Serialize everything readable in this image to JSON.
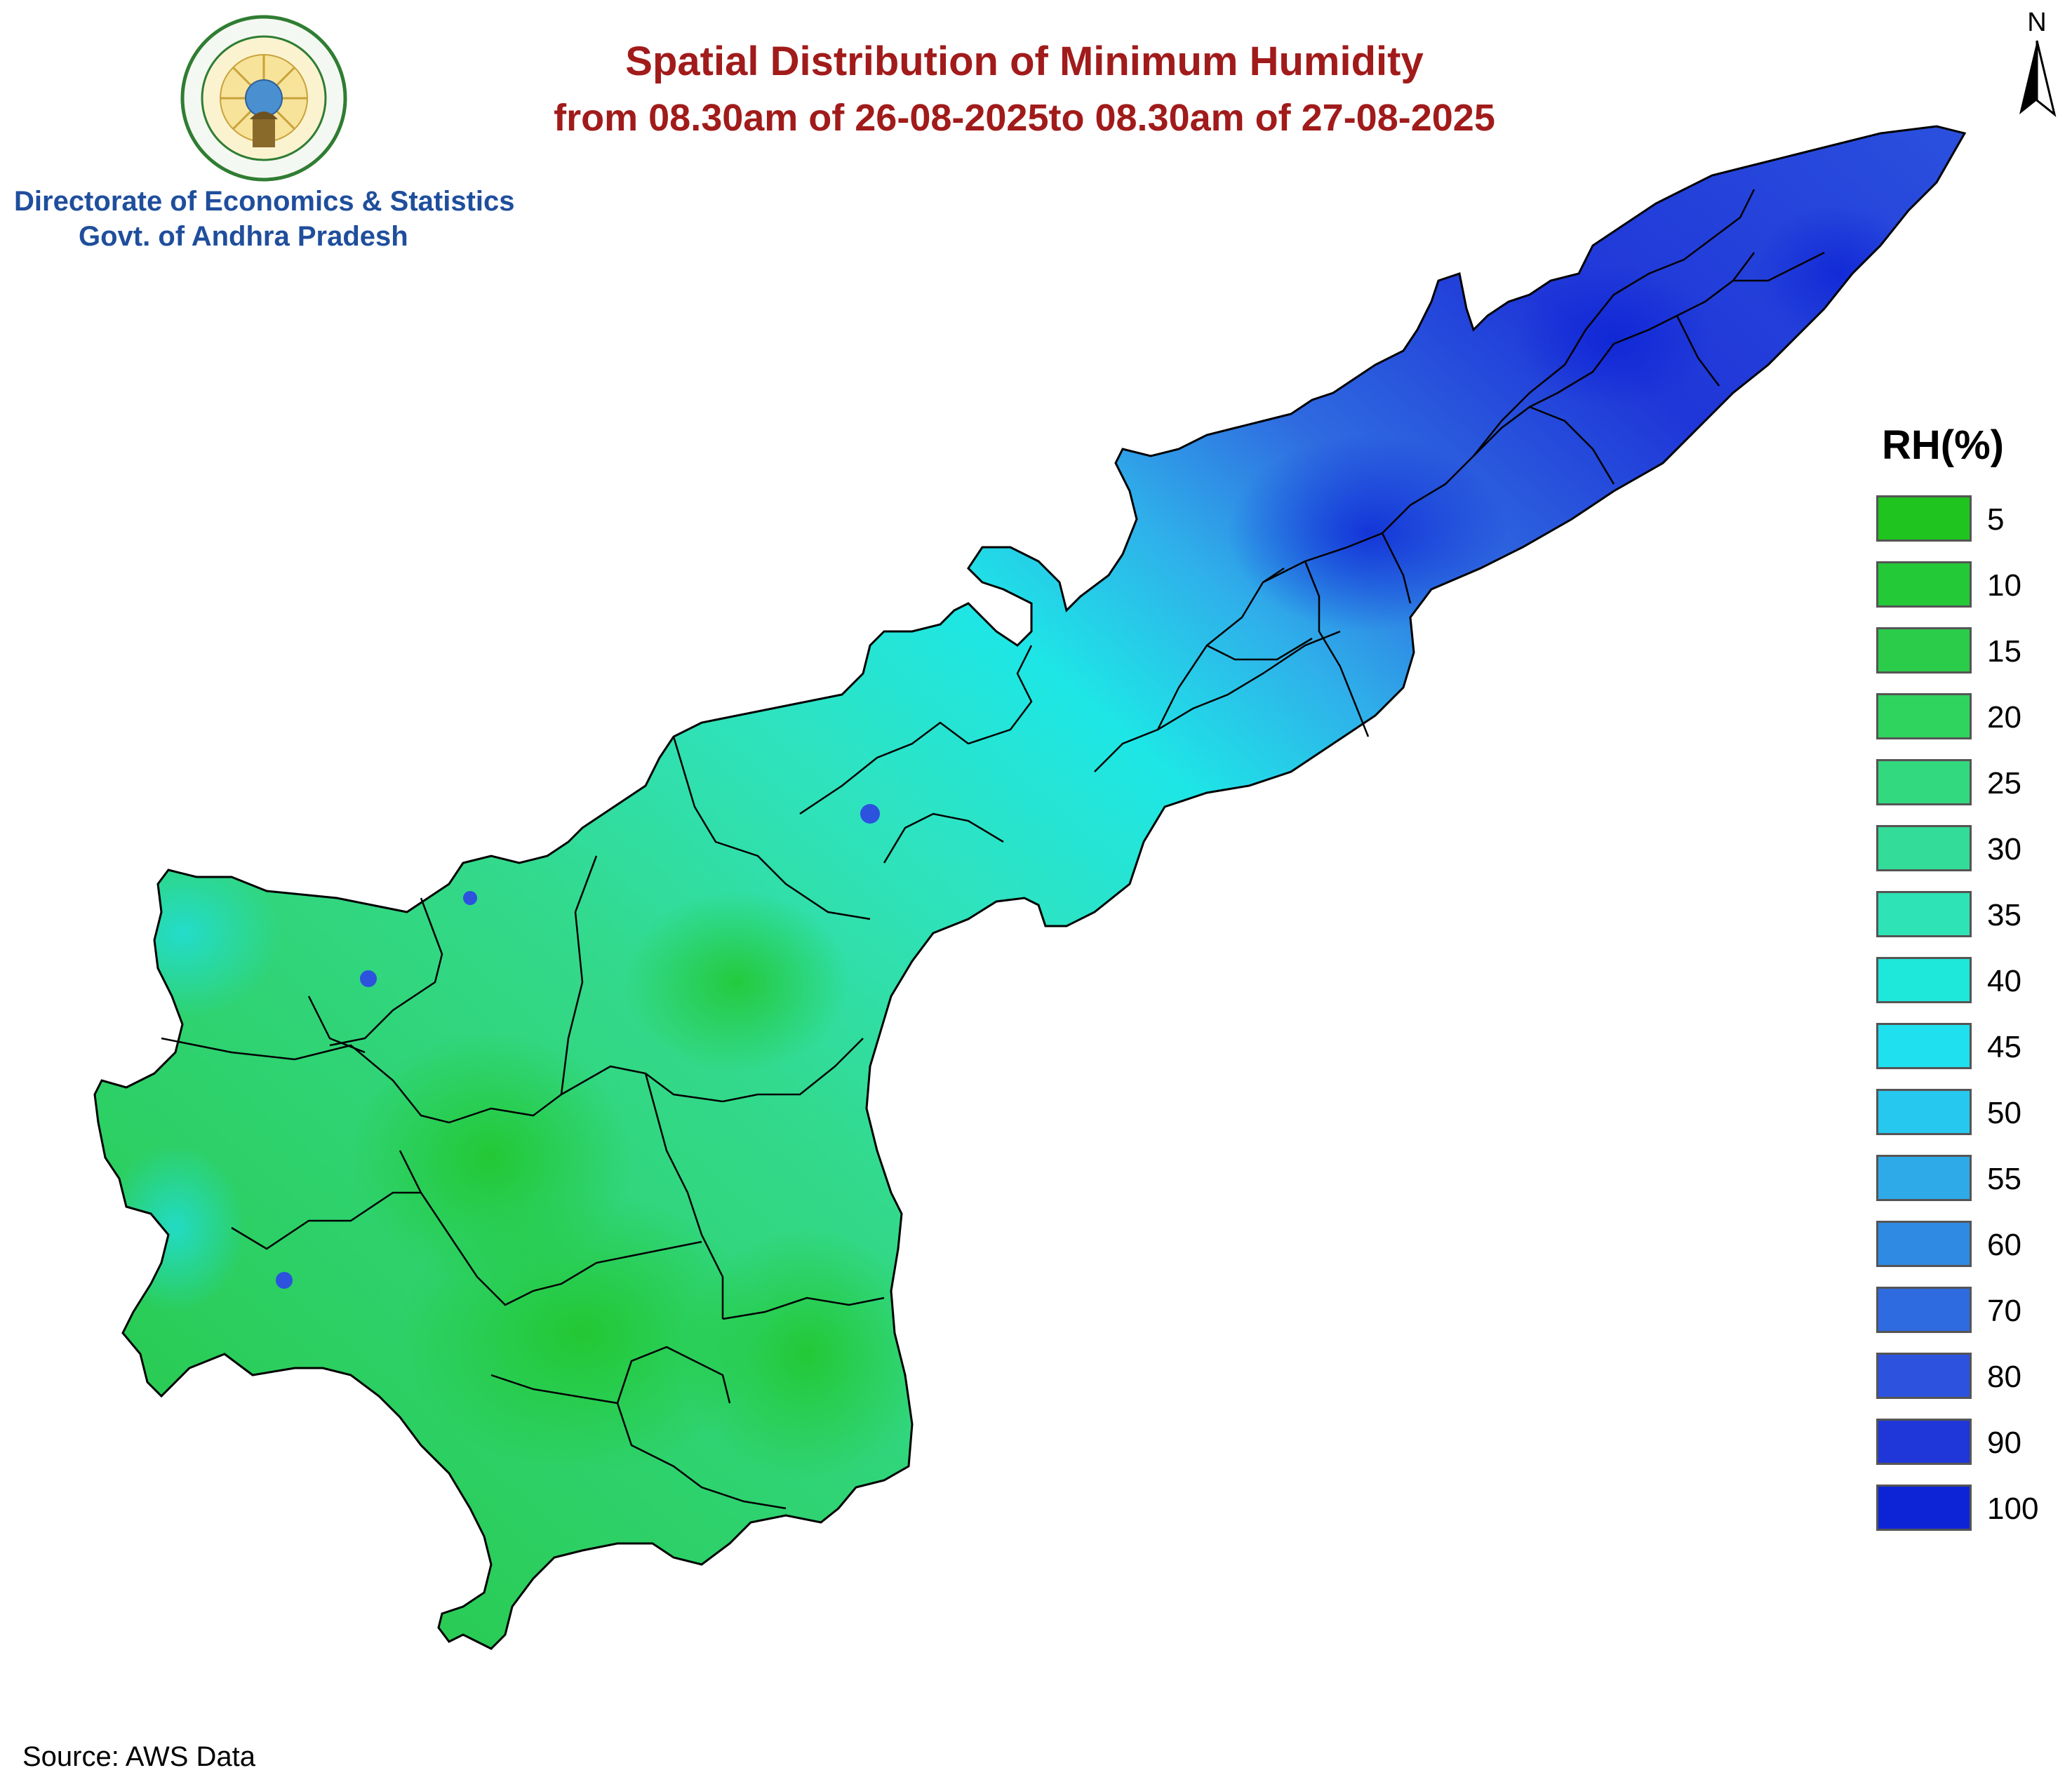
{
  "header": {
    "org_line1": "Directorate of Economics & Statistics",
    "org_line2": "Govt. of Andhra Pradesh",
    "title_line1": "Spatial Distribution of Minimum Humidity",
    "title_line2": "from 08.30am of 26-08-2025to 08.30am of 27-08-2025"
  },
  "north_arrow": {
    "label": "N"
  },
  "legend": {
    "title": "RH(%)",
    "items": [
      {
        "label": "5",
        "color": "#1fc41f"
      },
      {
        "label": "10",
        "color": "#24c938"
      },
      {
        "label": "15",
        "color": "#2acc4a"
      },
      {
        "label": "20",
        "color": "#2fd45e"
      },
      {
        "label": "25",
        "color": "#33d97e"
      },
      {
        "label": "30",
        "color": "#33dc98"
      },
      {
        "label": "35",
        "color": "#2ee3b5"
      },
      {
        "label": "40",
        "color": "#1ee8d9"
      },
      {
        "label": "45",
        "color": "#1ee0ef"
      },
      {
        "label": "50",
        "color": "#27c8ef"
      },
      {
        "label": "55",
        "color": "#2eaae9"
      },
      {
        "label": "60",
        "color": "#2f8ae3"
      },
      {
        "label": "70",
        "color": "#2f6be0"
      },
      {
        "label": "80",
        "color": "#2c52de"
      },
      {
        "label": "90",
        "color": "#1f36d8"
      },
      {
        "label": "100",
        "color": "#0d24d6"
      }
    ]
  },
  "footer": {
    "source": "Source: AWS Data"
  }
}
